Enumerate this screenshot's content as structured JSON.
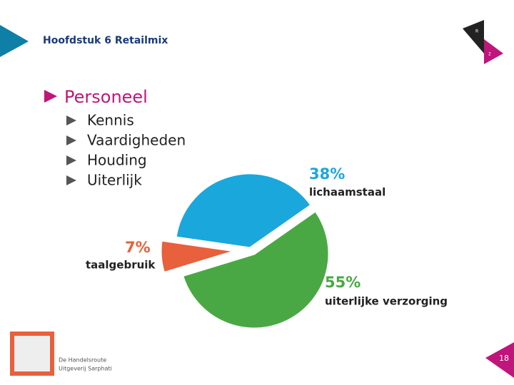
{
  "header": {
    "title": "Hoofdstuk 6 Retailmix",
    "corner_marks": [
      "R",
      "2"
    ]
  },
  "heading": "Personeel",
  "bullets": [
    "Kennis",
    "Vaardigheden",
    "Houding",
    "Uiterlijk"
  ],
  "chart_data": {
    "type": "pie",
    "categories": [
      "lichaamstaal",
      "uiterlijke verzorging",
      "taalgebruik"
    ],
    "values": [
      38,
      55,
      7
    ],
    "value_labels": [
      "38%",
      "55%",
      "7%"
    ],
    "colors": [
      "#1aa7dc",
      "#4aa844",
      "#e8603c"
    ]
  },
  "footer": {
    "logo_lines": [
      "De Handelsroute",
      "Uitgeverij Sarphati"
    ],
    "page_number": "18"
  }
}
